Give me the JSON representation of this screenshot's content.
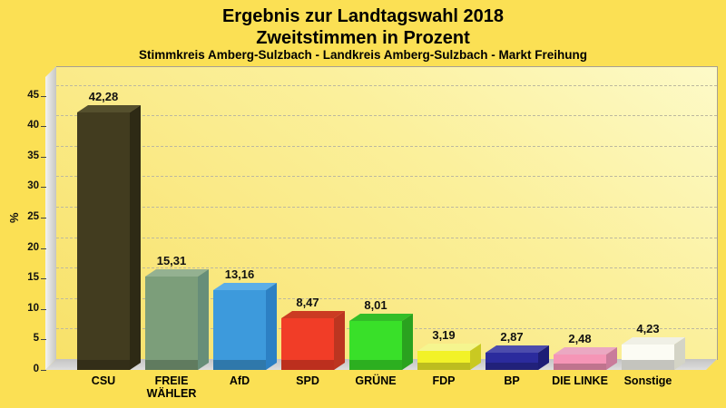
{
  "chart_data": {
    "type": "bar",
    "title_line1": "Ergebnis zur Landtagswahl 2018",
    "title_line2": "Zweitstimmen in Prozent",
    "subtitle": "Stimmkreis Amberg-Sulzbach - Landkreis Amberg-Sulzbach - Markt Freihung",
    "ylabel": "%",
    "ylim": [
      0,
      48
    ],
    "yticks": [
      0,
      5,
      10,
      15,
      20,
      25,
      30,
      35,
      40,
      45
    ],
    "grid": "dashed horizontal",
    "legend": "none",
    "style": "3d-bars",
    "categories": [
      "CSU",
      "FREIE\nWÄHLER",
      "AfD",
      "SPD",
      "GRÜNE",
      "FDP",
      "BP",
      "DIE LINKE",
      "Sonstige"
    ],
    "values": [
      42.28,
      15.31,
      13.16,
      8.47,
      8.01,
      3.19,
      2.87,
      2.48,
      4.23
    ],
    "value_labels": [
      "42,28",
      "15,31",
      "13,16",
      "8,47",
      "8,01",
      "3,19",
      "2,87",
      "2,48",
      "4,23"
    ],
    "bar_colors": [
      {
        "front": "#423C1F",
        "top": "#55502D",
        "side": "#2E2A15"
      },
      {
        "front": "#7C9E7A",
        "top": "#94B191",
        "side": "#678E79"
      },
      {
        "front": "#3D9ADC",
        "top": "#5CAEE7",
        "side": "#2C80C4"
      },
      {
        "front": "#F13D27",
        "top": "#CB3B22",
        "side": "#BC3520"
      },
      {
        "front": "#39E029",
        "top": "#33BE28",
        "side": "#2AA21F"
      },
      {
        "front": "#F2F228",
        "top": "#F5F58F",
        "side": "#C9C922"
      },
      {
        "front": "#2B2B9D",
        "top": "#4C4CAC",
        "side": "#1D1D76"
      },
      {
        "front": "#F595B6",
        "top": "#EBA8C2",
        "side": "#C97C9B"
      },
      {
        "front": "#FCFCF4",
        "top": "#F0F0E6",
        "side": "#D4D4C6"
      }
    ],
    "colors": {
      "page_background": "#FBE054",
      "plot_gradient_light": "#FDFAC8",
      "plot_gradient_dark": "#F8E169",
      "wall_gray": "#D8D8D4",
      "text": "#000000"
    }
  }
}
